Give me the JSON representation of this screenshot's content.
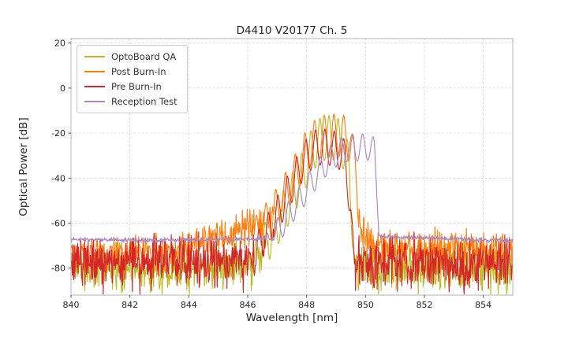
{
  "chart_data": {
    "type": "line",
    "title": "D4410 V20177 Ch. 5",
    "xlabel": "Wavelength [nm]",
    "ylabel": "Optical Power [dB]",
    "xlim": [
      840,
      855
    ],
    "ylim": [
      -92,
      22
    ],
    "xticks": [
      840,
      842,
      844,
      846,
      848,
      850,
      852,
      854
    ],
    "yticks": [
      20,
      0,
      -20,
      -40,
      -60,
      -80
    ],
    "grid": true,
    "grid_color": "#d0d0d0",
    "spine_color": "#b0b0b0",
    "legend_position": "upper left",
    "series": [
      {
        "name": "OptoBoard QA",
        "color": "#bcbd22",
        "seed": 11,
        "noise_amp": 9,
        "floor": [
          [
            840,
            -80
          ],
          [
            843,
            -80.5
          ],
          [
            846,
            -79.5
          ],
          [
            849.8,
            -79.5
          ],
          [
            852,
            -80
          ],
          [
            855,
            -80.5
          ]
        ],
        "envelope": [
          [
            845.9,
            -80
          ],
          [
            846.3,
            -66
          ],
          [
            846.7,
            -57
          ],
          [
            847.1,
            -48
          ],
          [
            847.5,
            -38
          ],
          [
            847.9,
            -27
          ],
          [
            848.2,
            -17
          ],
          [
            848.5,
            -12.5
          ],
          [
            848.9,
            -12
          ],
          [
            849.2,
            -14.5
          ],
          [
            849.45,
            -26
          ],
          [
            849.6,
            -60
          ],
          [
            849.7,
            -85
          ]
        ],
        "fringe_period": 0.31,
        "fringe_phase": 848.45,
        "fringe_depth": 20
      },
      {
        "name": "Post Burn-In",
        "color": "#ff7f0e",
        "seed": 22,
        "noise_amp": 7,
        "floor": [
          [
            840,
            -74.5
          ],
          [
            843.5,
            -73.5
          ],
          [
            844.8,
            -66.5
          ],
          [
            845.6,
            -64.5
          ],
          [
            846.4,
            -61
          ],
          [
            847.3,
            -58
          ],
          [
            848.2,
            -56
          ],
          [
            849.2,
            -56
          ],
          [
            849.8,
            -63
          ],
          [
            850.3,
            -70.5
          ],
          [
            851.5,
            -71.5
          ],
          [
            853,
            -72
          ],
          [
            855,
            -72.5
          ]
        ],
        "envelope": [
          [
            845.6,
            -70
          ],
          [
            846.1,
            -60
          ],
          [
            846.5,
            -53
          ],
          [
            846.9,
            -46
          ],
          [
            847.3,
            -37
          ],
          [
            847.7,
            -27
          ],
          [
            848.0,
            -18
          ],
          [
            848.4,
            -12.5
          ],
          [
            848.8,
            -11.5
          ],
          [
            849.2,
            -11.5
          ],
          [
            849.5,
            -14
          ],
          [
            849.7,
            -30
          ],
          [
            849.85,
            -60
          ],
          [
            849.95,
            -85
          ]
        ],
        "fringe_period": 0.33,
        "fringe_phase": 848.6,
        "fringe_depth": 19
      },
      {
        "name": "Pre Burn-In",
        "color": "#d62728",
        "seed": 33,
        "noise_amp": 10,
        "floor": [
          [
            840,
            -78
          ],
          [
            844,
            -78.5
          ],
          [
            846.5,
            -77.5
          ],
          [
            849.7,
            -77.5
          ],
          [
            852,
            -78.5
          ],
          [
            855,
            -79
          ]
        ],
        "envelope": [
          [
            845.9,
            -78
          ],
          [
            846.4,
            -62
          ],
          [
            846.8,
            -53
          ],
          [
            847.2,
            -43
          ],
          [
            847.6,
            -32
          ],
          [
            847.95,
            -23
          ],
          [
            848.3,
            -18.5
          ],
          [
            848.7,
            -18
          ],
          [
            849.05,
            -19.5
          ],
          [
            849.3,
            -23
          ],
          [
            849.5,
            -45
          ],
          [
            849.65,
            -85
          ]
        ],
        "fringe_period": 0.32,
        "fringe_phase": 848.3,
        "fringe_depth": 16
      },
      {
        "name": "Reception Test",
        "color": "#a887c6",
        "seed": 44,
        "noise_amp": 0.8,
        "floor": [
          [
            840,
            -67.3
          ],
          [
            842.5,
            -67.6
          ],
          [
            845,
            -67.2
          ],
          [
            847,
            -67
          ],
          [
            850.5,
            -65.9
          ],
          [
            851.5,
            -66.3
          ],
          [
            853,
            -67
          ],
          [
            855,
            -67.8
          ]
        ],
        "envelope": [
          [
            846.5,
            -67.5
          ],
          [
            847.0,
            -58
          ],
          [
            847.4,
            -50
          ],
          [
            847.8,
            -43
          ],
          [
            848.2,
            -35
          ],
          [
            848.6,
            -28
          ],
          [
            849.0,
            -23
          ],
          [
            849.4,
            -20.5
          ],
          [
            849.8,
            -20.5
          ],
          [
            850.1,
            -20
          ],
          [
            850.3,
            -22
          ],
          [
            850.42,
            -45
          ],
          [
            850.52,
            -70
          ]
        ],
        "fringe_period": 0.36,
        "fringe_phase": 849.9,
        "fringe_depth": 12
      }
    ]
  }
}
